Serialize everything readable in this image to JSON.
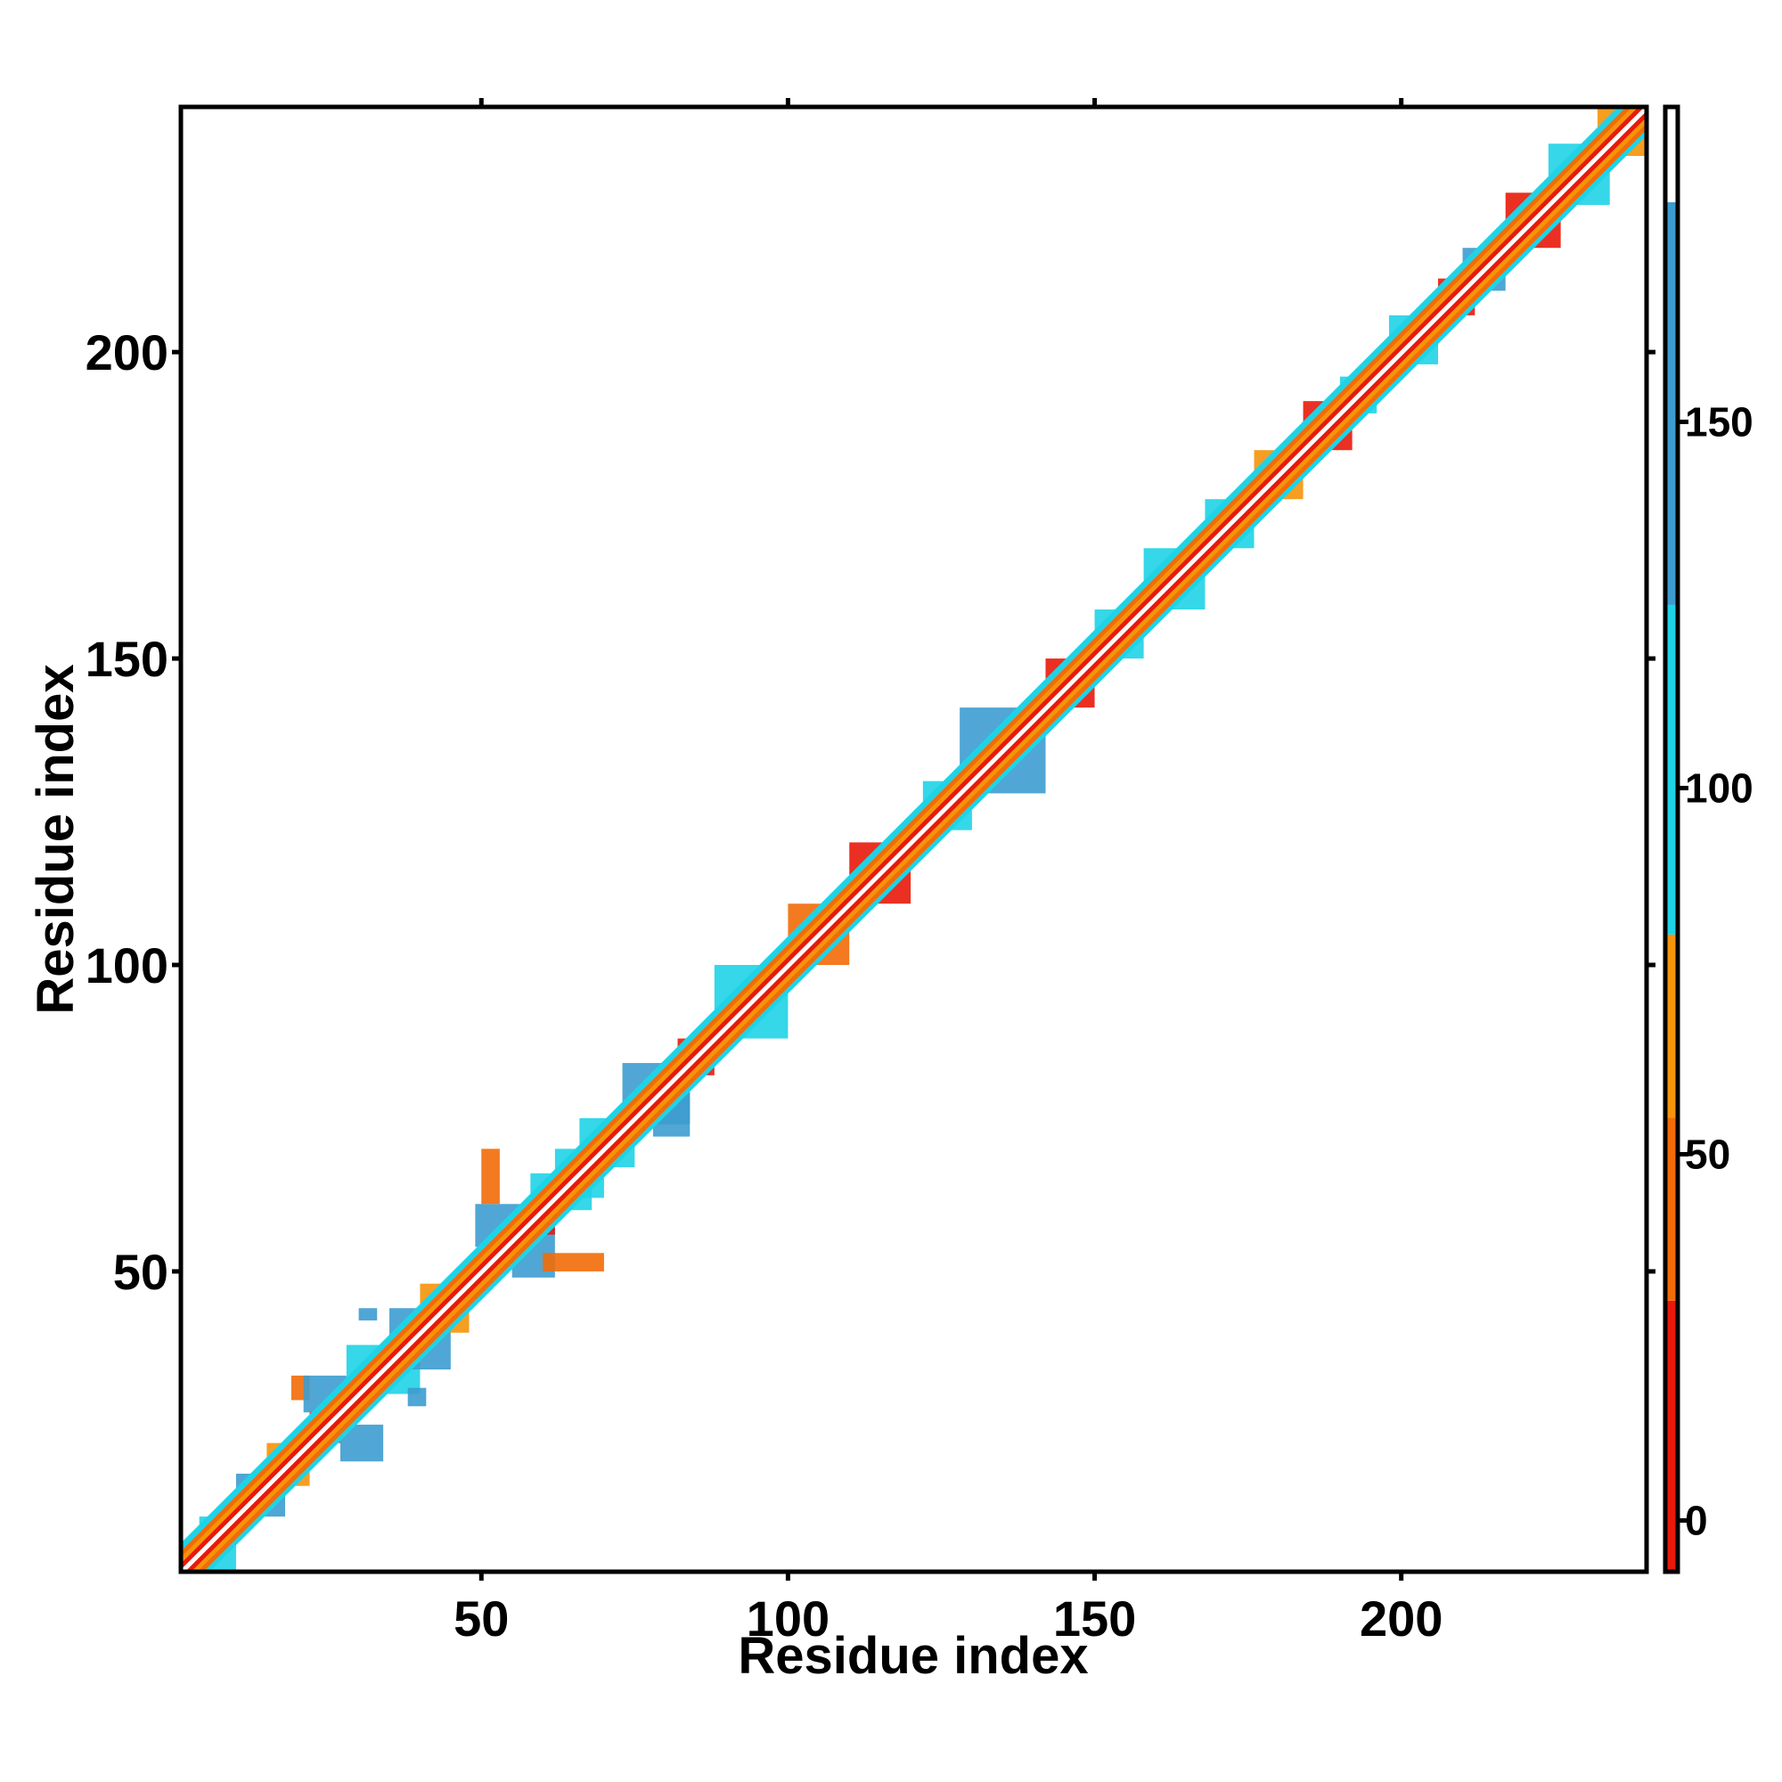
{
  "chart_data": {
    "type": "heatmap",
    "title": "",
    "xlabel": "Residue index",
    "ylabel": "Residue index",
    "xlim": [
      1,
      240
    ],
    "ylim": [
      1,
      240
    ],
    "x_ticks": [
      50,
      100,
      150,
      200
    ],
    "y_ticks": [
      50,
      100,
      150,
      200
    ],
    "colorbar": {
      "range": [
        -7,
        193
      ],
      "ticks": [
        0,
        50,
        100,
        150
      ],
      "bands": [
        {
          "from": -7,
          "to": 30,
          "color": "#e8190a"
        },
        {
          "from": 30,
          "to": 55,
          "color": "#f26b08"
        },
        {
          "from": 55,
          "to": 80,
          "color": "#f5940a"
        },
        {
          "from": 80,
          "to": 125,
          "color": "#1fd3e6"
        },
        {
          "from": 125,
          "to": 180,
          "color": "#3d9ccf"
        },
        {
          "from": 180,
          "to": 193,
          "color": "#ffffff"
        }
      ]
    },
    "diagonal": {
      "from": 1,
      "to": 240,
      "color": "#ffffff",
      "flank_colors": [
        "#f26b08",
        "#e8190a",
        "#f5940a",
        "#1fd3e6"
      ]
    },
    "patches": [
      {
        "x1": 4,
        "x2": 10,
        "y1": 1,
        "y2": 10,
        "color": "#1fd3e6",
        "value": 95
      },
      {
        "x1": 10,
        "x2": 18,
        "y1": 10,
        "y2": 17,
        "color": "#3d9ccf",
        "value": 140
      },
      {
        "x1": 15,
        "x2": 22,
        "y1": 15,
        "y2": 22,
        "color": "#f5940a",
        "value": 65
      },
      {
        "x1": 19,
        "x2": 22,
        "y1": 29,
        "y2": 33,
        "color": "#f26b08",
        "value": 45
      },
      {
        "x1": 21,
        "x2": 28,
        "y1": 27,
        "y2": 33,
        "color": "#3d9ccf",
        "value": 150
      },
      {
        "x1": 27,
        "x2": 34,
        "y1": 19,
        "y2": 25,
        "color": "#3d9ccf",
        "value": 150
      },
      {
        "x1": 22,
        "x2": 27,
        "y1": 22,
        "y2": 27,
        "color": "#e8190a",
        "value": 10
      },
      {
        "x1": 28,
        "x2": 35,
        "y1": 32,
        "y2": 38,
        "color": "#1fd3e6",
        "value": 100
      },
      {
        "x1": 32,
        "x2": 40,
        "y1": 30,
        "y2": 36,
        "color": "#1fd3e6",
        "value": 100
      },
      {
        "x1": 35,
        "x2": 45,
        "y1": 34,
        "y2": 44,
        "color": "#3d9ccf",
        "value": 130
      },
      {
        "x1": 40,
        "x2": 48,
        "y1": 40,
        "y2": 48,
        "color": "#f5940a",
        "value": 65
      },
      {
        "x1": 30,
        "x2": 33,
        "y1": 42,
        "y2": 44,
        "color": "#3d9ccf",
        "value": 145
      },
      {
        "x1": 38,
        "x2": 41,
        "y1": 28,
        "y2": 31,
        "color": "#3d9ccf",
        "value": 145
      },
      {
        "x1": 49,
        "x2": 58,
        "y1": 54,
        "y2": 61,
        "color": "#3d9ccf",
        "value": 155
      },
      {
        "x1": 55,
        "x2": 62,
        "y1": 49,
        "y2": 57,
        "color": "#3d9ccf",
        "value": 155
      },
      {
        "x1": 57,
        "x2": 62,
        "y1": 56,
        "y2": 61,
        "color": "#e8190a",
        "value": 12
      },
      {
        "x1": 50,
        "x2": 53,
        "y1": 61,
        "y2": 70,
        "color": "#f26b08",
        "value": 45
      },
      {
        "x1": 60,
        "x2": 70,
        "y1": 50,
        "y2": 53,
        "color": "#f26b08",
        "value": 45
      },
      {
        "x1": 58,
        "x2": 68,
        "y1": 60,
        "y2": 66,
        "color": "#1fd3e6",
        "value": 100
      },
      {
        "x1": 62,
        "x2": 70,
        "y1": 62,
        "y2": 70,
        "color": "#1fd3e6",
        "value": 100
      },
      {
        "x1": 66,
        "x2": 75,
        "y1": 67,
        "y2": 75,
        "color": "#1fd3e6",
        "value": 105
      },
      {
        "x1": 73,
        "x2": 84,
        "y1": 74,
        "y2": 84,
        "color": "#3d9ccf",
        "value": 135
      },
      {
        "x1": 78,
        "x2": 84,
        "y1": 72,
        "y2": 80,
        "color": "#3d9ccf",
        "value": 135
      },
      {
        "x1": 82,
        "x2": 88,
        "y1": 82,
        "y2": 88,
        "color": "#e8190a",
        "value": 12
      },
      {
        "x1": 88,
        "x2": 100,
        "y1": 88,
        "y2": 100,
        "color": "#1fd3e6",
        "value": 100
      },
      {
        "x1": 100,
        "x2": 110,
        "y1": 100,
        "y2": 110,
        "color": "#f26b08",
        "value": 45
      },
      {
        "x1": 110,
        "x2": 120,
        "y1": 110,
        "y2": 120,
        "color": "#e8190a",
        "value": 15
      },
      {
        "x1": 122,
        "x2": 130,
        "y1": 122,
        "y2": 130,
        "color": "#1fd3e6",
        "value": 100
      },
      {
        "x1": 128,
        "x2": 142,
        "y1": 128,
        "y2": 142,
        "color": "#3d9ccf",
        "value": 130
      },
      {
        "x1": 142,
        "x2": 150,
        "y1": 142,
        "y2": 150,
        "color": "#e8190a",
        "value": 12
      },
      {
        "x1": 150,
        "x2": 158,
        "y1": 150,
        "y2": 158,
        "color": "#1fd3e6",
        "value": 100
      },
      {
        "x1": 158,
        "x2": 168,
        "y1": 158,
        "y2": 168,
        "color": "#1fd3e6",
        "value": 100
      },
      {
        "x1": 168,
        "x2": 176,
        "y1": 168,
        "y2": 176,
        "color": "#1fd3e6",
        "value": 100
      },
      {
        "x1": 176,
        "x2": 184,
        "y1": 176,
        "y2": 184,
        "color": "#f5940a",
        "value": 65
      },
      {
        "x1": 184,
        "x2": 192,
        "y1": 184,
        "y2": 192,
        "color": "#e8190a",
        "value": 15
      },
      {
        "x1": 190,
        "x2": 196,
        "y1": 190,
        "y2": 196,
        "color": "#1fd3e6",
        "value": 100
      },
      {
        "x1": 198,
        "x2": 206,
        "y1": 198,
        "y2": 206,
        "color": "#1fd3e6",
        "value": 100
      },
      {
        "x1": 206,
        "x2": 212,
        "y1": 206,
        "y2": 212,
        "color": "#e8190a",
        "value": 15
      },
      {
        "x1": 210,
        "x2": 217,
        "y1": 210,
        "y2": 217,
        "color": "#3d9ccf",
        "value": 130
      },
      {
        "x1": 217,
        "x2": 226,
        "y1": 217,
        "y2": 226,
        "color": "#e8190a",
        "value": 15
      },
      {
        "x1": 224,
        "x2": 234,
        "y1": 224,
        "y2": 234,
        "color": "#1fd3e6",
        "value": 100
      },
      {
        "x1": 232,
        "x2": 240,
        "y1": 232,
        "y2": 240,
        "color": "#f5940a",
        "value": 65
      }
    ],
    "grid": false,
    "legend": "colorbar-right"
  }
}
